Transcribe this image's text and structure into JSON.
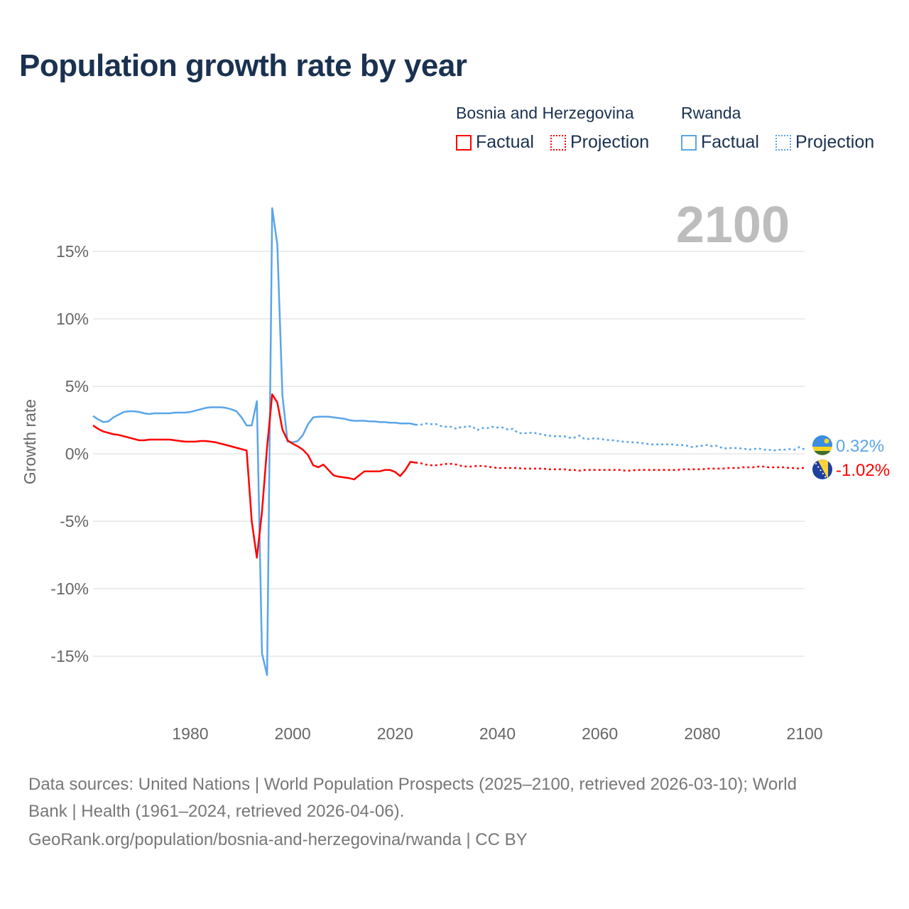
{
  "title": "Population growth rate by year",
  "year_label": "2100",
  "legend": {
    "groups": [
      {
        "name": "Bosnia and Herzegovina",
        "factual": "Factual",
        "projection": "Projection",
        "color": "#ff0000"
      },
      {
        "name": "Rwanda",
        "factual": "Factual",
        "projection": "Projection",
        "color": "#5aa5e8"
      }
    ]
  },
  "footer": {
    "line1": "Data sources: United Nations | World Population Prospects (2025–2100, retrieved 2026-03-10); World",
    "line2": "Bank | Health (1961–2024, retrieved 2026-04-06).",
    "line3": "GeoRank.org/population/bosnia-and-herzegovina/rwanda | CC BY"
  },
  "chart_data": {
    "type": "line",
    "title": "Population growth rate by year",
    "xlabel": "",
    "ylabel": "Growth rate",
    "xlim": [
      1961,
      2100
    ],
    "ylim": [
      -17,
      19
    ],
    "x_ticks": [
      "1980",
      "2000",
      "2020",
      "2040",
      "2060",
      "2080",
      "2100"
    ],
    "y_ticks": [
      {
        "value": 15,
        "label": "15%"
      },
      {
        "value": 10,
        "label": "10%"
      },
      {
        "value": 5,
        "label": "5%"
      },
      {
        "value": 0,
        "label": "0%"
      },
      {
        "value": -5,
        "label": "-5%"
      },
      {
        "value": -10,
        "label": "-10%"
      },
      {
        "value": -15,
        "label": "-15%"
      }
    ],
    "grid": true,
    "legend_position": "top-right",
    "series": [
      {
        "name": "Rwanda",
        "color": "#5aa5e8",
        "end_label": "0.32%",
        "factual_start": 1961,
        "factual": [
          2.8,
          2.55,
          2.35,
          2.4,
          2.7,
          2.9,
          3.1,
          3.15,
          3.15,
          3.1,
          3.0,
          2.95,
          3.0,
          3.0,
          3.0,
          3.0,
          3.05,
          3.05,
          3.05,
          3.1,
          3.2,
          3.3,
          3.4,
          3.45,
          3.45,
          3.45,
          3.4,
          3.3,
          3.15,
          2.7,
          2.1,
          2.1,
          3.9,
          -14.8,
          -16.4,
          18.2,
          15.5,
          4.3,
          0.9,
          0.85,
          0.95,
          1.4,
          2.2,
          2.7,
          2.75,
          2.75,
          2.75,
          2.7,
          2.65,
          2.6,
          2.5,
          2.45,
          2.45,
          2.45,
          2.4,
          2.4,
          2.35,
          2.35,
          2.3,
          2.3,
          2.25,
          2.25,
          2.25,
          2.15
        ],
        "projection_start": 2024,
        "projection": [
          2.15,
          2.15,
          2.25,
          2.2,
          2.2,
          2.05,
          2.0,
          2.0,
          1.85,
          2.0,
          2.0,
          2.05,
          1.75,
          1.9,
          1.9,
          2.0,
          1.95,
          1.95,
          1.8,
          1.85,
          1.55,
          1.5,
          1.55,
          1.55,
          1.5,
          1.4,
          1.35,
          1.3,
          1.3,
          1.3,
          1.2,
          1.2,
          1.35,
          1.1,
          1.1,
          1.15,
          1.1,
          1.05,
          1.0,
          1.0,
          0.9,
          0.9,
          0.85,
          0.85,
          0.8,
          0.75,
          0.7,
          0.7,
          0.7,
          0.7,
          0.7,
          0.65,
          0.65,
          0.6,
          0.5,
          0.55,
          0.6,
          0.65,
          0.55,
          0.6,
          0.4,
          0.4,
          0.45,
          0.4,
          0.4,
          0.3,
          0.35,
          0.4,
          0.3,
          0.3,
          0.25,
          0.3,
          0.3,
          0.35,
          0.3,
          0.5,
          0.32
        ]
      },
      {
        "name": "Bosnia and Herzegovina",
        "color": "#ff0000",
        "end_label": "-1.02%",
        "factual_start": 1961,
        "factual": [
          2.1,
          1.85,
          1.65,
          1.55,
          1.45,
          1.4,
          1.3,
          1.2,
          1.1,
          1.0,
          1.0,
          1.05,
          1.05,
          1.05,
          1.05,
          1.05,
          1.0,
          0.95,
          0.9,
          0.9,
          0.9,
          0.95,
          0.95,
          0.9,
          0.85,
          0.75,
          0.65,
          0.55,
          0.45,
          0.35,
          0.25,
          -5.0,
          -7.7,
          -4.3,
          0.5,
          4.4,
          3.8,
          1.8,
          1.0,
          0.75,
          0.55,
          0.3,
          -0.1,
          -0.85,
          -1.0,
          -0.8,
          -1.2,
          -1.6,
          -1.7,
          -1.75,
          -1.8,
          -1.9,
          -1.6,
          -1.3,
          -1.3,
          -1.3,
          -1.3,
          -1.2,
          -1.2,
          -1.35,
          -1.65,
          -1.2,
          -0.6,
          -0.65
        ],
        "projection_start": 2024,
        "projection": [
          -0.65,
          -0.7,
          -0.8,
          -0.85,
          -0.85,
          -0.8,
          -0.75,
          -0.75,
          -0.8,
          -0.9,
          -0.95,
          -0.95,
          -0.9,
          -0.9,
          -0.95,
          -1.0,
          -1.05,
          -1.05,
          -1.05,
          -1.05,
          -1.05,
          -1.1,
          -1.1,
          -1.1,
          -1.1,
          -1.1,
          -1.15,
          -1.15,
          -1.15,
          -1.15,
          -1.2,
          -1.2,
          -1.25,
          -1.2,
          -1.2,
          -1.2,
          -1.2,
          -1.2,
          -1.2,
          -1.2,
          -1.2,
          -1.25,
          -1.25,
          -1.2,
          -1.2,
          -1.2,
          -1.2,
          -1.2,
          -1.2,
          -1.2,
          -1.2,
          -1.2,
          -1.15,
          -1.15,
          -1.15,
          -1.15,
          -1.15,
          -1.1,
          -1.1,
          -1.1,
          -1.1,
          -1.05,
          -1.05,
          -1.05,
          -1.0,
          -1.0,
          -1.0,
          -0.95,
          -0.95,
          -1.0,
          -1.0,
          -1.0,
          -1.0,
          -1.05,
          -1.05,
          -1.1,
          -1.02
        ]
      }
    ]
  }
}
